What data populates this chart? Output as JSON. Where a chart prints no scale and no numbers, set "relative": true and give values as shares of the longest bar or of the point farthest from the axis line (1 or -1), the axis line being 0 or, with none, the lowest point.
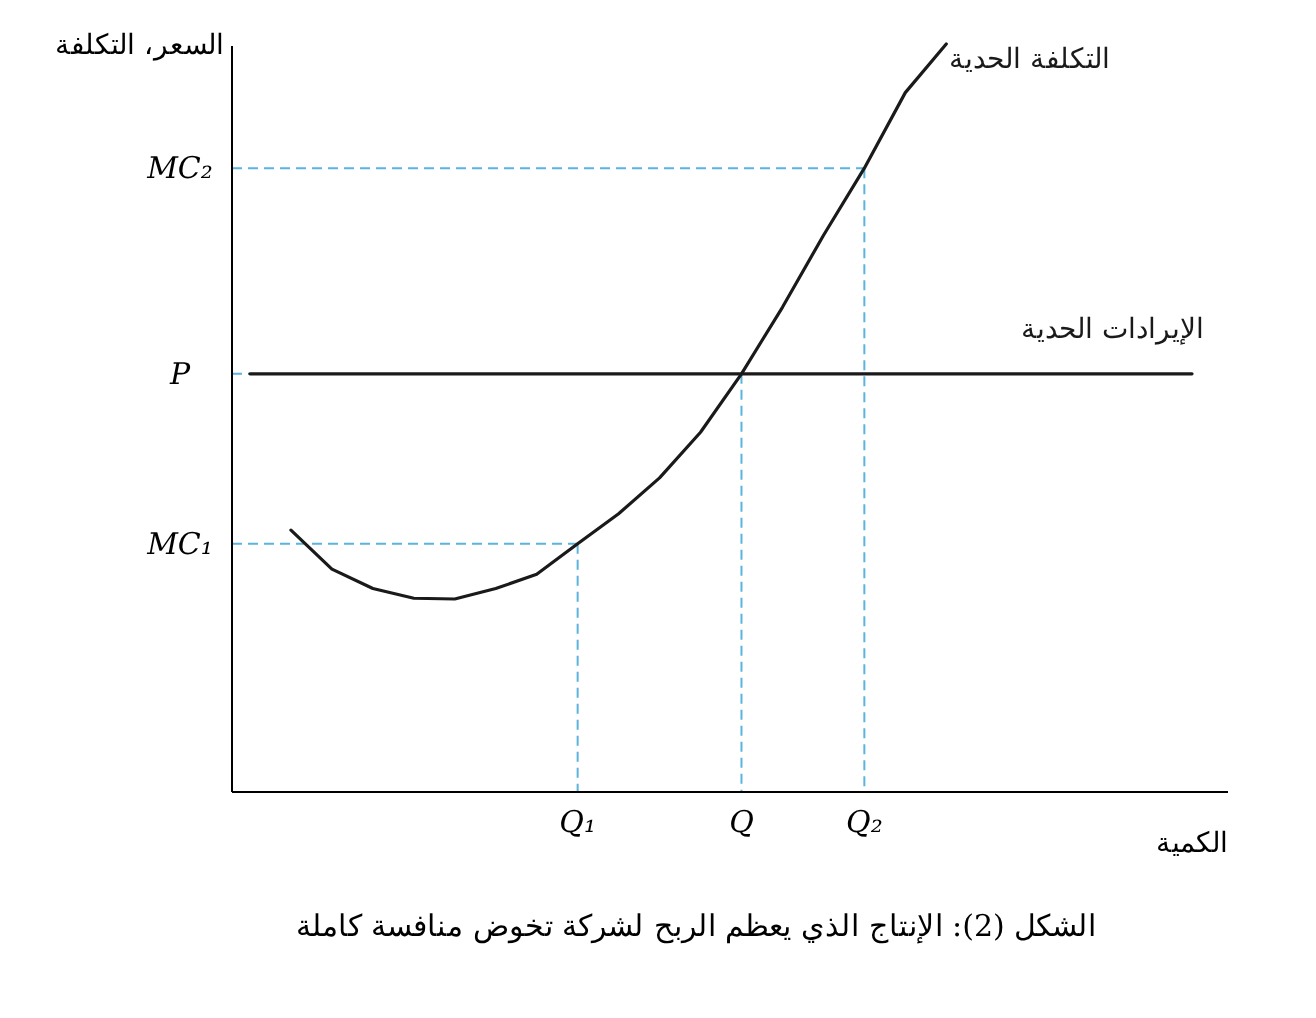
{
  "chart_data": {
    "type": "line",
    "relative": true,
    "ylabel": "السعر، التكلفة",
    "xlabel": "الكمية",
    "annotations": [
      "الشكل (2): الإنتاج الذي يعظم الربح لشركة تخوض منافسة كاملة",
      "MC₁",
      "P",
      "MC₂"
    ],
    "categories": [
      null,
      null,
      null,
      null,
      null,
      null,
      null,
      null,
      "Q₁",
      null,
      null,
      null,
      "Q",
      null,
      null,
      "Q₂",
      null,
      null,
      null,
      null,
      null,
      null,
      null,
      null
    ],
    "grid": false,
    "legend": false,
    "marker": "none",
    "line_style": "solid",
    "series": [
      {
        "name": "التكلفة الحدية",
        "color": "#1a1a1a",
        "values": [
          null,
          0.35,
          0.298,
          0.272,
          0.259,
          0.258,
          0.272,
          0.291,
          0.332,
          0.372,
          0.42,
          0.481,
          0.559,
          0.648,
          0.744,
          0.834,
          0.935,
          1.0,
          null,
          null,
          null,
          null,
          null,
          null
        ]
      },
      {
        "name": "الإيرادات الحدية",
        "color": "#1a1a1a",
        "values": [
          0.559,
          0.559,
          0.559,
          0.559,
          0.559,
          0.559,
          0.559,
          0.559,
          0.559,
          0.559,
          0.559,
          0.559,
          0.559,
          0.559,
          0.559,
          0.559,
          0.559,
          0.559,
          0.559,
          0.559,
          0.559,
          0.559,
          0.559,
          0.559
        ]
      }
    ]
  }
}
